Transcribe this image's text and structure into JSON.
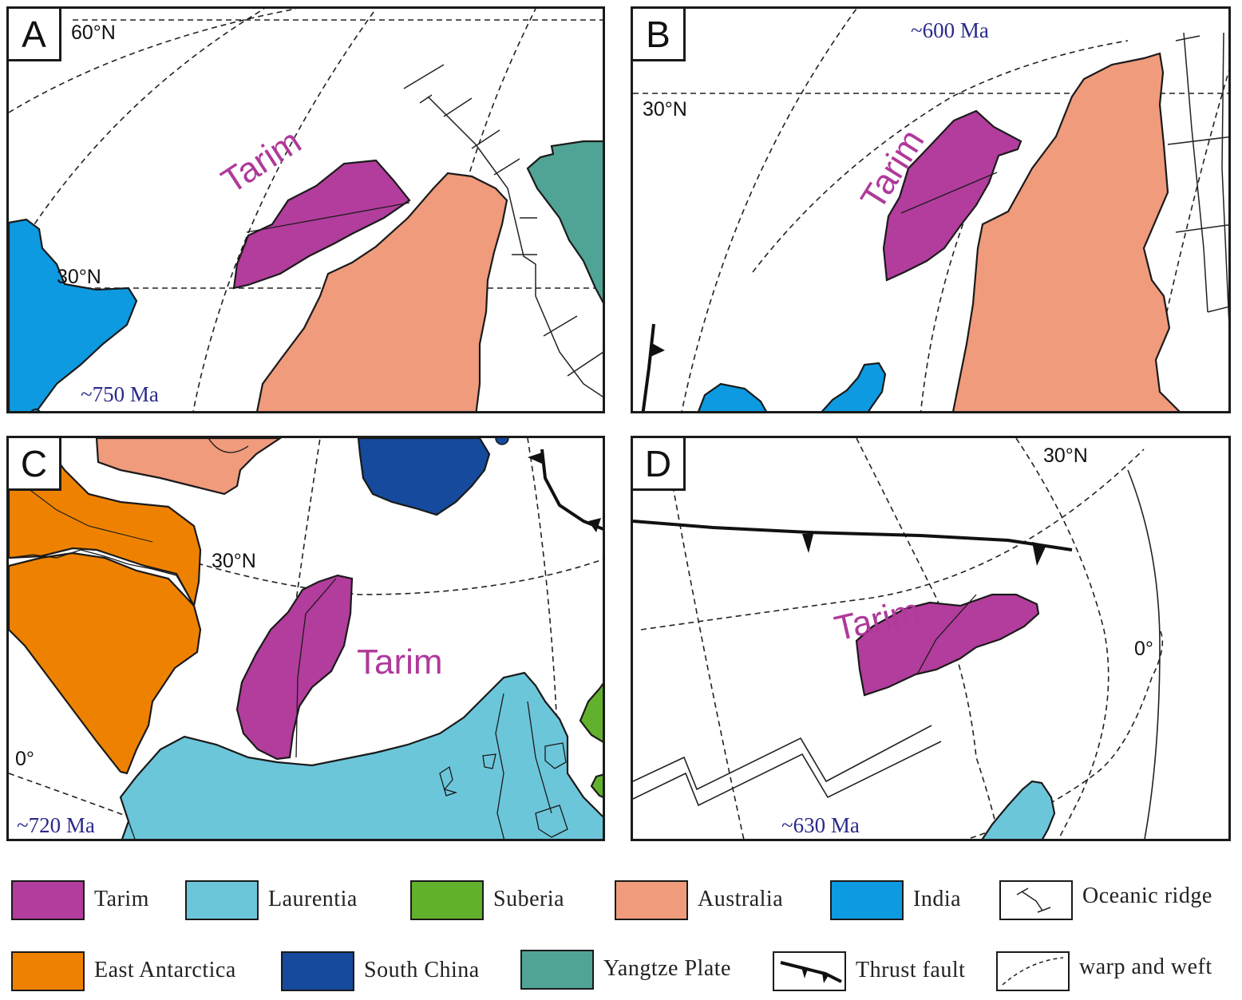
{
  "panels": {
    "a": {
      "letter": "A",
      "age": "~750  Ma",
      "lat_top": "60°N",
      "lat_mid": "30°N",
      "tarim": "Tarim"
    },
    "b": {
      "letter": "B",
      "age": "~600 Ma",
      "lat_mid": "30°N",
      "tarim": "Tarim"
    },
    "c": {
      "letter": "C",
      "age": "~720 Ma",
      "lat_mid": "30°N",
      "lat_low": "0°",
      "tarim": "Tarim"
    },
    "d": {
      "letter": "D",
      "age": "~630 Ma",
      "lat_mid": "30°N",
      "lat_low": "0°",
      "tarim": "Tarim"
    }
  },
  "legend": [
    {
      "label": "Tarim",
      "color": "#b23d9c"
    },
    {
      "label": "Laurentia",
      "color": "#6cc6da"
    },
    {
      "label": "Suberia",
      "color": "#62b12d"
    },
    {
      "label": "Australia",
      "color": "#ef9b7c"
    },
    {
      "label": "India",
      "color": "#0d9ae0"
    },
    {
      "label": "Oceanic ridge",
      "symbol": "oceanic-ridge-icon"
    },
    {
      "label": "East Antarctica",
      "color": "#ee8200"
    },
    {
      "label": "South China",
      "color": "#154a9c"
    },
    {
      "label": "Yangtze Plate",
      "color": "#50a496"
    },
    {
      "label": "Thrust fault",
      "symbol": "thrust-fault-icon"
    },
    {
      "label": "warp and weft",
      "symbol": "graticule-icon"
    }
  ]
}
